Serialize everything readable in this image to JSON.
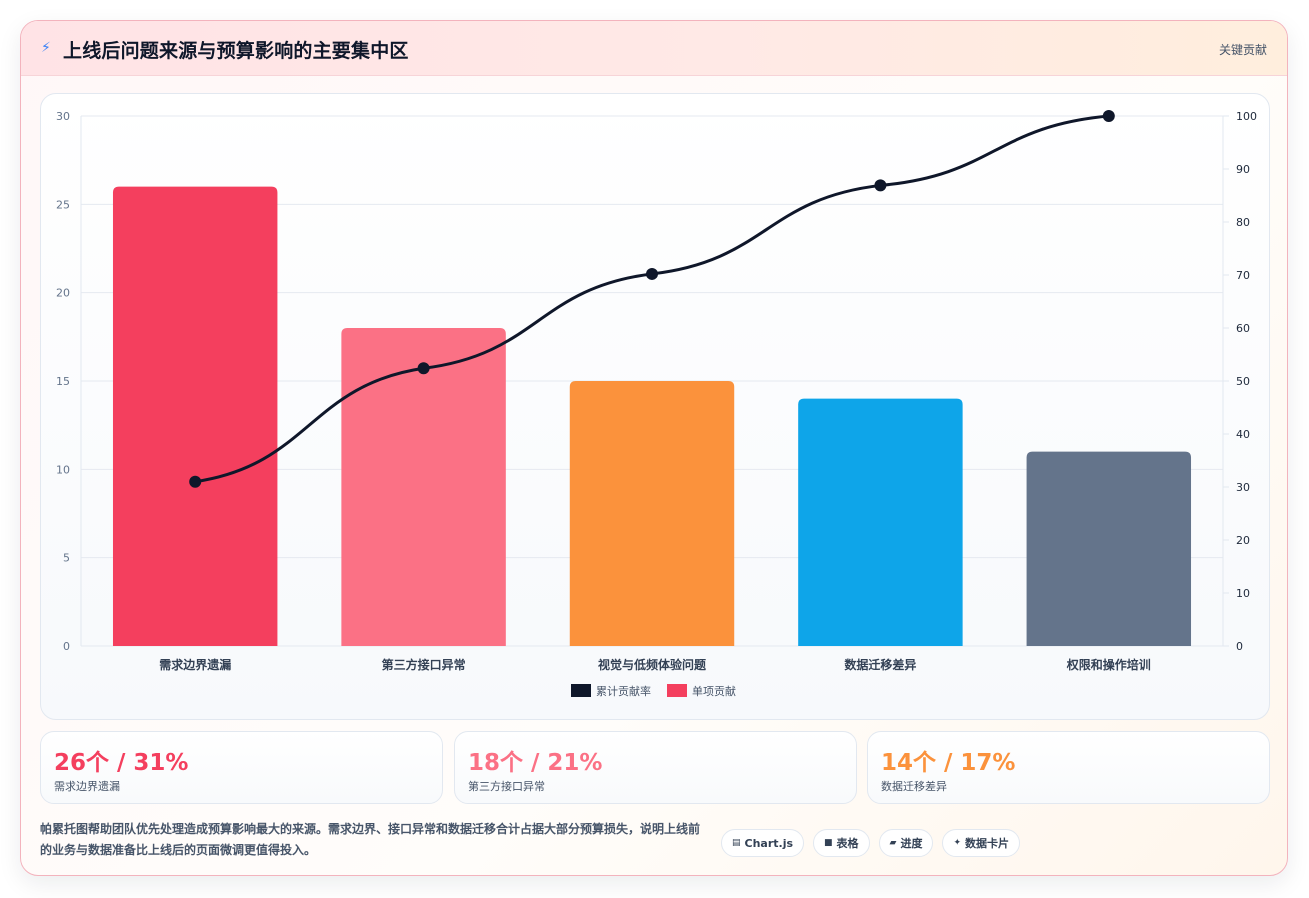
{
  "header": {
    "icon": "lightning-icon",
    "title": "上线后问题来源与预算影响的主要集中区",
    "tag": "关键贡献"
  },
  "chart_data": {
    "type": "bar",
    "categories": [
      "需求边界遗漏",
      "第三方接口异常",
      "视觉与低频体验问题",
      "数据迁移差异",
      "权限和操作培训"
    ],
    "series": [
      {
        "name": "单项贡献",
        "type": "bar",
        "axis": "left",
        "values": [
          26,
          18,
          15,
          14,
          11
        ],
        "colors": [
          "#f43f5e",
          "#fb7185",
          "#fb923c",
          "#0ea5e9",
          "#64748b"
        ]
      },
      {
        "name": "累计贡献率",
        "type": "line",
        "axis": "right",
        "values": [
          31,
          52.4,
          70.2,
          86.9,
          100
        ],
        "color": "#0f172a"
      }
    ],
    "ylim": [
      0,
      30
    ],
    "y_ticks": [
      0,
      5,
      10,
      15,
      20,
      25,
      30
    ],
    "y2lim": [
      0,
      100
    ],
    "y2_ticks": [
      0,
      10,
      20,
      30,
      40,
      50,
      60,
      70,
      80,
      90,
      100
    ],
    "grid": true,
    "legend_position": "bottom"
  },
  "stats": [
    {
      "value": "26个 / 31%",
      "label": "需求边界遗漏",
      "color": "#f43f5e"
    },
    {
      "value": "18个 / 21%",
      "label": "第三方接口异常",
      "color": "#fb7185"
    },
    {
      "value": "14个 / 17%",
      "label": "数据迁移差异",
      "color": "#fb923c"
    }
  ],
  "note": "帕累托图帮助团队优先处理造成预算影响最大的来源。需求边界、接口异常和数据迁移合计占据大部分预算损失，说明上线前的业务与数据准备比上线后的页面微调更值得投入。",
  "chips": [
    {
      "icon": "chart-icon",
      "glyph": "▤",
      "label": "Chart.js"
    },
    {
      "icon": "table-icon",
      "glyph": "■",
      "label": "表格"
    },
    {
      "icon": "progress-icon",
      "glyph": "▰",
      "label": "进度"
    },
    {
      "icon": "sparkle-icon",
      "glyph": "✦",
      "label": "数据卡片"
    }
  ]
}
